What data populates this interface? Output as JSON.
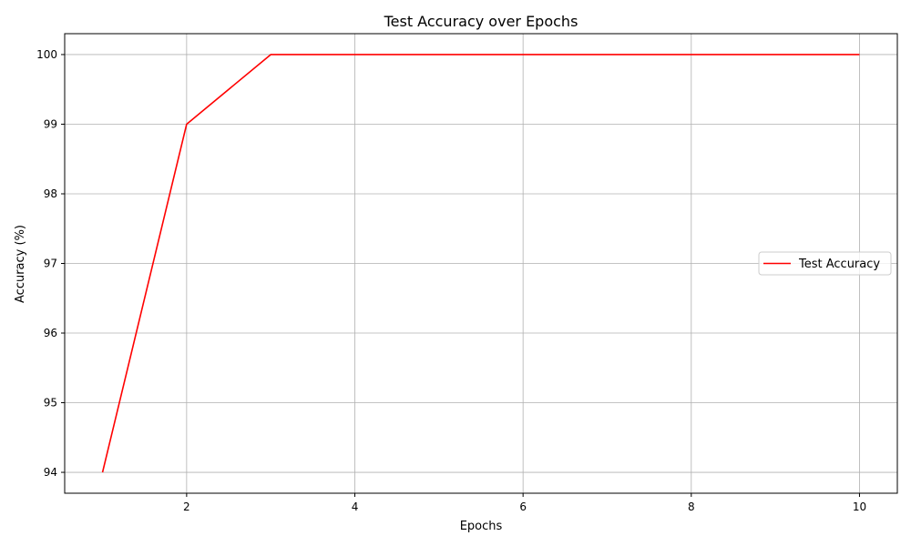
{
  "chart_data": {
    "type": "line",
    "title": "Test Accuracy over Epochs",
    "xlabel": "Epochs",
    "ylabel": "Accuracy (%)",
    "x": [
      1,
      2,
      3,
      4,
      5,
      6,
      7,
      8,
      9,
      10
    ],
    "xlim": [
      0.55,
      10.45
    ],
    "ylim": [
      93.7,
      100.3
    ],
    "xticks": [
      2,
      4,
      6,
      8,
      10
    ],
    "yticks": [
      94,
      95,
      96,
      97,
      98,
      99,
      100
    ],
    "grid": true,
    "legend_position": "right",
    "series": [
      {
        "name": "Test Accuracy",
        "color": "#ff0000",
        "values": [
          94,
          99,
          100,
          100,
          100,
          100,
          100,
          100,
          100,
          100
        ]
      }
    ]
  }
}
